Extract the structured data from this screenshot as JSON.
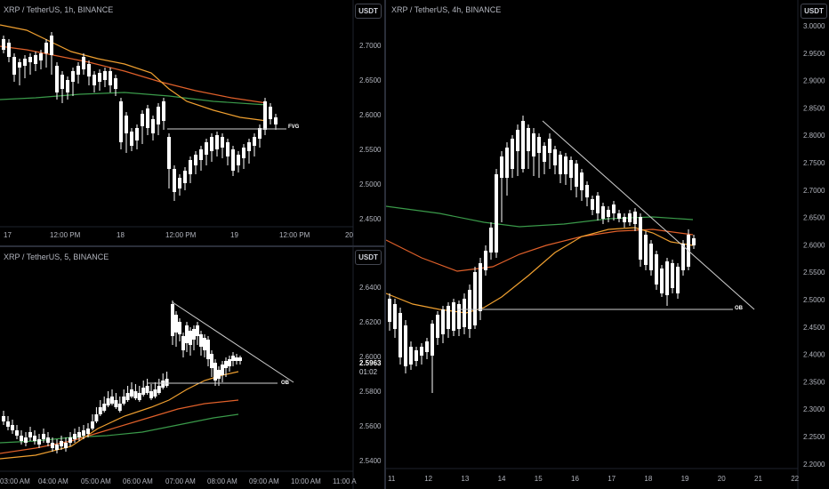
{
  "currency_button": "USDT",
  "panes": {
    "tl": {
      "title": "XRP / TetherUS, 1h, BINANCE",
      "y_ticks": [
        "2.7000",
        "2.6500",
        "2.6000",
        "2.5500",
        "2.5000",
        "2.4500"
      ],
      "x_ticks": [
        "17",
        "12:00 PM",
        "18",
        "12:00 PM",
        "19",
        "12:00 PM",
        "20"
      ],
      "line_label": "FVG"
    },
    "bl": {
      "title": "XRP / TetherUS, 5, BINANCE",
      "y_ticks": [
        "2.6400",
        "2.6200",
        "2.6000",
        "2.5800",
        "2.5600",
        "2.5400"
      ],
      "x_ticks": [
        "03:00 AM",
        "04:00 AM",
        "05:00 AM",
        "06:00 AM",
        "07:00 AM",
        "08:00 AM",
        "09:00 AM",
        "10:00 AM",
        "11:00 A"
      ],
      "line_label": "OB",
      "last_price": "2.5963",
      "countdown": "01:02"
    },
    "right": {
      "title": "XRP / TetherUS, 4h, BINANCE",
      "y_ticks": [
        "3.0000",
        "2.9500",
        "2.9000",
        "2.8500",
        "2.8000",
        "2.7500",
        "2.7000",
        "2.6500",
        "2.6000",
        "2.5500",
        "2.5000",
        "2.4500",
        "2.4000",
        "2.3500",
        "2.3000",
        "2.2500",
        "2.2000"
      ],
      "x_ticks": [
        "11",
        "12",
        "13",
        "14",
        "15",
        "16",
        "17",
        "18",
        "19",
        "20",
        "21",
        "22"
      ],
      "line_label": "OB"
    }
  },
  "colors": {
    "candle": "#ffffff",
    "ma_orange": "#f0a030",
    "ma_red": "#e0602a",
    "ma_green": "#3a9a4a",
    "line": "#cfcfcf"
  }
}
